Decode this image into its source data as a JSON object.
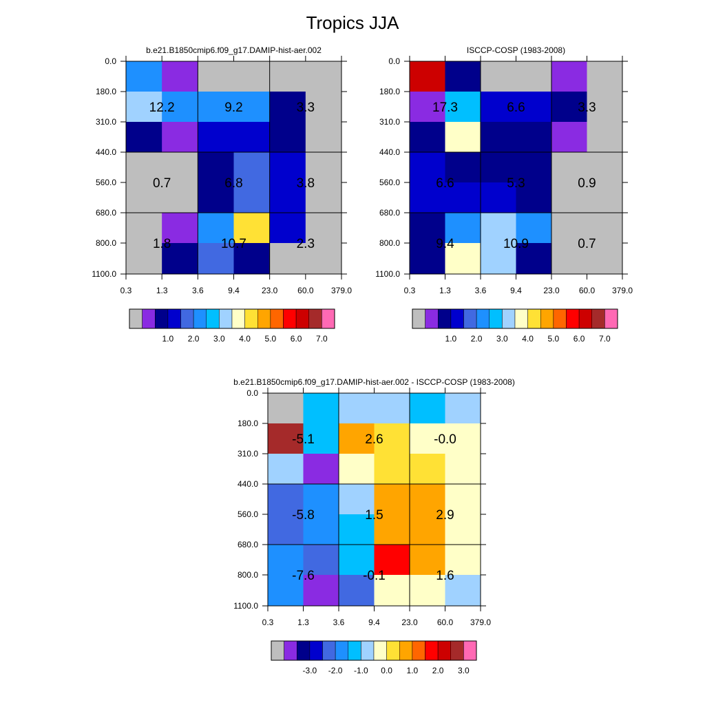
{
  "figure": {
    "title": "Tropics JJA"
  },
  "palettes": {
    "abs": [
      "#bebebe",
      "#8a2be2",
      "#00008b",
      "#0000cd",
      "#4169e1",
      "#1e90ff",
      "#00bfff",
      "#a0d2ff",
      "#ffffc8",
      "#ffe135",
      "#ffa500",
      "#ff6600",
      "#ff0000",
      "#cd0000",
      "#a52a2a",
      "#ff69b4"
    ],
    "diff": [
      "#bebebe",
      "#8a2be2",
      "#00008b",
      "#0000cd",
      "#4169e1",
      "#1e90ff",
      "#00bfff",
      "#a0d2ff",
      "#ffffc8",
      "#ffe135",
      "#ffa500",
      "#ff6600",
      "#ff0000",
      "#cd0000",
      "#a52a2a",
      "#ff69b4"
    ]
  },
  "chart_data": [
    {
      "type": "heatmap",
      "title": "b.e21.B1850cmip6.f09_g17.DAMIP-hist-aer.002",
      "x_ticks": [
        "0.3",
        "1.3",
        "3.6",
        "9.4",
        "23.0",
        "60.0",
        "379.0"
      ],
      "y_ticks": [
        "0.0",
        "180.0",
        "310.0",
        "440.0",
        "560.0",
        "680.0",
        "800.0",
        "1100.0"
      ],
      "palette": "abs",
      "cells": [
        [
          5,
          1,
          0,
          0,
          0,
          0
        ],
        [
          7,
          5,
          5,
          5,
          2,
          0
        ],
        [
          2,
          1,
          3,
          3,
          2,
          0
        ],
        [
          0,
          0,
          2,
          4,
          3,
          0
        ],
        [
          0,
          0,
          2,
          4,
          3,
          0
        ],
        [
          0,
          1,
          5,
          9,
          3,
          0
        ],
        [
          0,
          2,
          4,
          2,
          0,
          0
        ]
      ],
      "annotations": [
        {
          "row": 1,
          "col": 0.5,
          "text": "12.2"
        },
        {
          "row": 1,
          "col": 2.5,
          "text": "9.2"
        },
        {
          "row": 1,
          "col": 4.5,
          "text": "3.3"
        },
        {
          "row": 3.5,
          "col": 0.5,
          "text": "0.7"
        },
        {
          "row": 3.5,
          "col": 2.5,
          "text": "6.8"
        },
        {
          "row": 3.5,
          "col": 4.5,
          "text": "3.8"
        },
        {
          "row": 5.5,
          "col": 0.5,
          "text": "1.8"
        },
        {
          "row": 5.5,
          "col": 2.5,
          "text": "10.7"
        },
        {
          "row": 5.5,
          "col": 4.5,
          "text": "2.3"
        }
      ],
      "colorbar_labels": [
        "1.0",
        "2.0",
        "3.0",
        "4.0",
        "5.0",
        "6.0",
        "7.0"
      ]
    },
    {
      "type": "heatmap",
      "title": "ISCCP-COSP (1983-2008)",
      "x_ticks": [
        "0.3",
        "1.3",
        "3.6",
        "9.4",
        "23.0",
        "60.0",
        "379.0"
      ],
      "y_ticks": [
        "0.0",
        "180.0",
        "310.0",
        "440.0",
        "560.0",
        "680.0",
        "800.0",
        "1100.0"
      ],
      "palette": "abs",
      "cells": [
        [
          13,
          2,
          0,
          0,
          1,
          0
        ],
        [
          1,
          6,
          3,
          3,
          2,
          0
        ],
        [
          2,
          8,
          2,
          2,
          1,
          0
        ],
        [
          3,
          2,
          2,
          2,
          0,
          0
        ],
        [
          3,
          3,
          3,
          2,
          0,
          0
        ],
        [
          2,
          5,
          7,
          5,
          0,
          0
        ],
        [
          2,
          8,
          7,
          2,
          0,
          0
        ]
      ],
      "annotations": [
        {
          "row": 1,
          "col": 0.5,
          "text": "17.3"
        },
        {
          "row": 1,
          "col": 2.5,
          "text": "6.6"
        },
        {
          "row": 1,
          "col": 4.5,
          "text": "3.3"
        },
        {
          "row": 3.5,
          "col": 0.5,
          "text": "6.6"
        },
        {
          "row": 3.5,
          "col": 2.5,
          "text": "5.3"
        },
        {
          "row": 3.5,
          "col": 4.5,
          "text": "0.9"
        },
        {
          "row": 5.5,
          "col": 0.5,
          "text": "9.4"
        },
        {
          "row": 5.5,
          "col": 2.5,
          "text": "10.9"
        },
        {
          "row": 5.5,
          "col": 4.5,
          "text": "0.7"
        }
      ],
      "colorbar_labels": [
        "1.0",
        "2.0",
        "3.0",
        "4.0",
        "5.0",
        "6.0",
        "7.0"
      ]
    },
    {
      "type": "heatmap",
      "title": "b.e21.B1850cmip6.f09_g17.DAMIP-hist-aer.002 - ISCCP-COSP (1983-2008)",
      "x_ticks": [
        "0.3",
        "1.3",
        "3.6",
        "9.4",
        "23.0",
        "60.0",
        "379.0"
      ],
      "y_ticks": [
        "0.0",
        "180.0",
        "310.0",
        "440.0",
        "560.0",
        "680.0",
        "800.0",
        "1100.0"
      ],
      "palette": "diff",
      "cells": [
        [
          0,
          6,
          7,
          7,
          6,
          7
        ],
        [
          14,
          6,
          10,
          9,
          8,
          8
        ],
        [
          7,
          1,
          8,
          9,
          9,
          8
        ],
        [
          4,
          5,
          7,
          10,
          10,
          8
        ],
        [
          4,
          5,
          6,
          10,
          10,
          8
        ],
        [
          5,
          4,
          6,
          12,
          10,
          8
        ],
        [
          5,
          1,
          4,
          8,
          8,
          7
        ]
      ],
      "annotations": [
        {
          "row": 1,
          "col": 0.5,
          "text": "-5.1"
        },
        {
          "row": 1,
          "col": 2.5,
          "text": "2.6"
        },
        {
          "row": 1,
          "col": 4.5,
          "text": "-0.0"
        },
        {
          "row": 3.5,
          "col": 0.5,
          "text": "-5.8"
        },
        {
          "row": 3.5,
          "col": 2.5,
          "text": "1.5"
        },
        {
          "row": 3.5,
          "col": 4.5,
          "text": "2.9"
        },
        {
          "row": 5.5,
          "col": 0.5,
          "text": "-7.6"
        },
        {
          "row": 5.5,
          "col": 2.5,
          "text": "-0.1"
        },
        {
          "row": 5.5,
          "col": 4.5,
          "text": "1.6"
        }
      ],
      "colorbar_labels": [
        "-3.0",
        "-2.0",
        "-1.0",
        "0.0",
        "1.0",
        "2.0",
        "3.0"
      ]
    }
  ]
}
